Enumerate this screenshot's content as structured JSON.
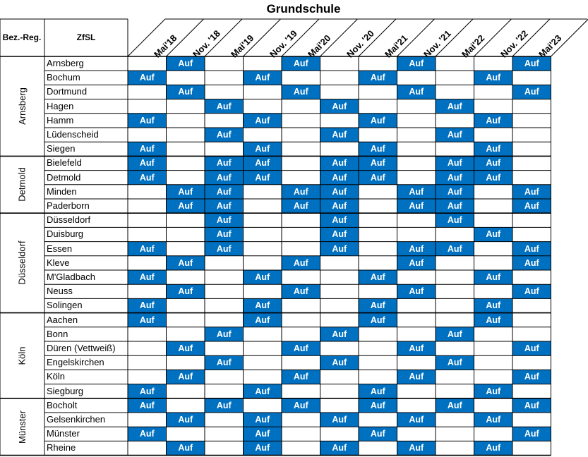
{
  "title": "Grundschule",
  "header": {
    "bez_reg": "Bez.-Reg.",
    "zfsl": "ZfSL"
  },
  "cell_text": "Auf",
  "columns": [
    "Mai'18",
    "Nov. '18",
    "Mai'19",
    "Nov. '19",
    "Mai'20",
    "Nov. '20",
    "Mai'21",
    "Nov. '21",
    "Mai'22",
    "Nov. '22",
    "Mai'23"
  ],
  "colors": {
    "on_fill": "#0070c0",
    "on_text": "#ffffff",
    "grid": "#000000"
  },
  "regions": [
    {
      "name": "Arnsberg",
      "rows": [
        {
          "zfsl": "Arnsberg",
          "on": [
            1,
            4,
            7,
            10
          ]
        },
        {
          "zfsl": "Bochum",
          "on": [
            0,
            3,
            6,
            9
          ]
        },
        {
          "zfsl": "Dortmund",
          "on": [
            1,
            4,
            7,
            10
          ]
        },
        {
          "zfsl": "Hagen",
          "on": [
            2,
            5,
            8
          ]
        },
        {
          "zfsl": "Hamm",
          "on": [
            0,
            3,
            6,
            9
          ]
        },
        {
          "zfsl": "Lüdenscheid",
          "on": [
            2,
            5,
            8
          ]
        },
        {
          "zfsl": "Siegen",
          "on": [
            0,
            3,
            6,
            9
          ]
        }
      ]
    },
    {
      "name": "Detmold",
      "rows": [
        {
          "zfsl": "Bielefeld",
          "on": [
            0,
            2,
            3,
            5,
            6,
            8,
            9
          ]
        },
        {
          "zfsl": "Detmold",
          "on": [
            0,
            2,
            3,
            5,
            6,
            8,
            9
          ]
        },
        {
          "zfsl": "Minden",
          "on": [
            1,
            2,
            4,
            5,
            7,
            8,
            10
          ]
        },
        {
          "zfsl": "Paderborn",
          "on": [
            1,
            2,
            4,
            5,
            7,
            8,
            10
          ]
        }
      ]
    },
    {
      "name": "Düsseldorf",
      "rows": [
        {
          "zfsl": "Düsseldorf",
          "on": [
            2,
            5,
            8
          ]
        },
        {
          "zfsl": "Duisburg",
          "on": [
            2,
            5,
            9
          ]
        },
        {
          "zfsl": "Essen",
          "on": [
            0,
            2,
            5,
            7,
            8,
            10
          ]
        },
        {
          "zfsl": "Kleve",
          "on": [
            1,
            4,
            7,
            10
          ]
        },
        {
          "zfsl": "M'Gladbach",
          "on": [
            0,
            3,
            6,
            9
          ]
        },
        {
          "zfsl": "Neuss",
          "on": [
            1,
            4,
            7,
            10
          ]
        },
        {
          "zfsl": "Solingen",
          "on": [
            0,
            3,
            6,
            9
          ]
        }
      ]
    },
    {
      "name": "Köln",
      "rows": [
        {
          "zfsl": "Aachen",
          "on": [
            0,
            3,
            6,
            9
          ]
        },
        {
          "zfsl": "Bonn",
          "on": [
            2,
            5,
            8
          ]
        },
        {
          "zfsl": "Düren (Vettweiß)",
          "on": [
            1,
            4,
            7,
            10
          ]
        },
        {
          "zfsl": "Engelskirchen",
          "on": [
            2,
            5,
            8
          ]
        },
        {
          "zfsl": "Köln",
          "on": [
            1,
            4,
            7,
            10
          ]
        },
        {
          "zfsl": "Siegburg",
          "on": [
            0,
            3,
            6,
            9
          ]
        }
      ]
    },
    {
      "name": "Münster",
      "rows": [
        {
          "zfsl": "Bocholt",
          "on": [
            0,
            2,
            4,
            6,
            8,
            10
          ]
        },
        {
          "zfsl": "Gelsenkirchen",
          "on": [
            1,
            3,
            5,
            7,
            9
          ]
        },
        {
          "zfsl": "Münster",
          "on": [
            0,
            3,
            6,
            10
          ]
        },
        {
          "zfsl": "Rheine",
          "on": [
            1,
            3,
            5,
            7,
            9
          ]
        }
      ]
    }
  ]
}
